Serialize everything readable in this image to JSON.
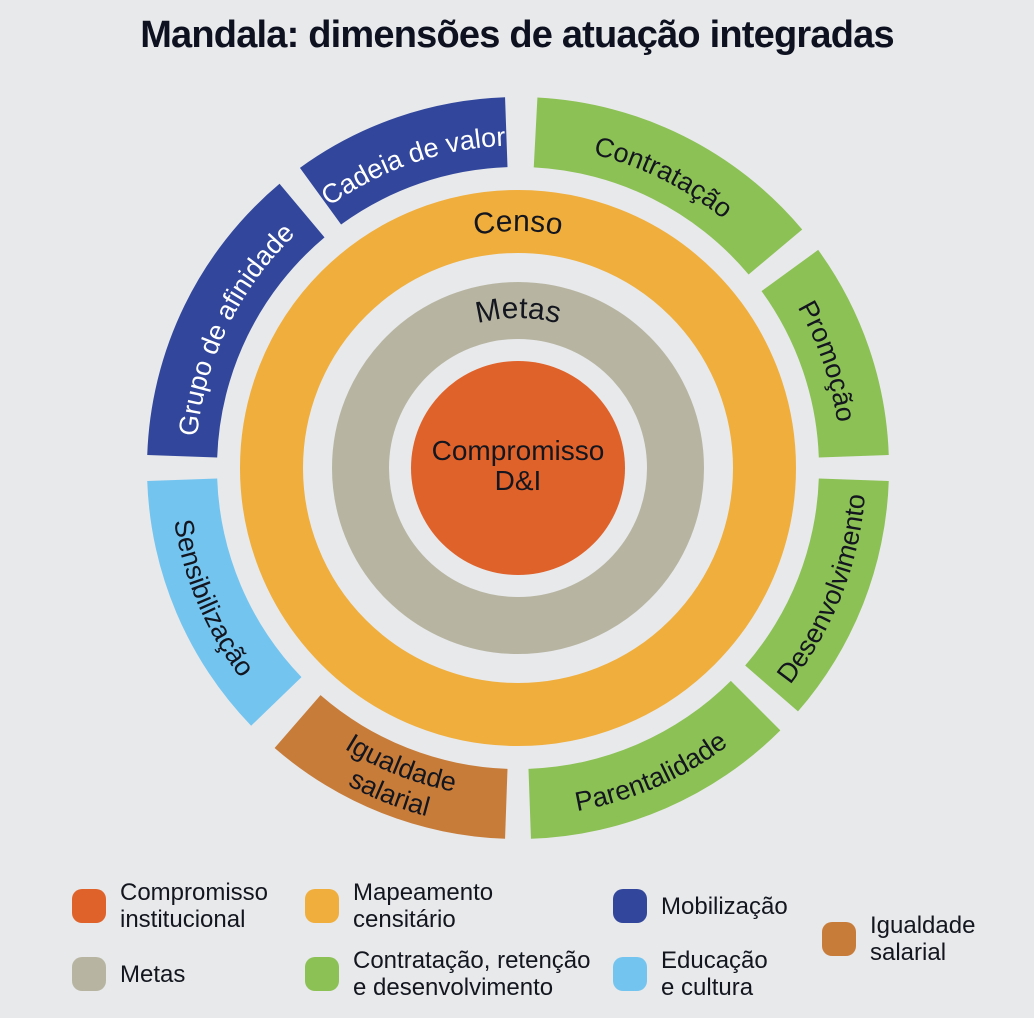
{
  "title": "Mandala: dimensões de atuação integradas",
  "colors": {
    "background": "#E8E9EB",
    "orange": "#E0622B",
    "olive_gray": "#B7B5A2",
    "amber": "#F0AE3D",
    "green": "#8CC155",
    "dark_blue": "#32479C",
    "light_blue": "#74C4F0",
    "brown": "#C87C3A",
    "text_dark": "#14161F",
    "text_light": "#FFFFFF"
  },
  "mandala": {
    "center": {
      "name": "compromisso-d-i",
      "lines": [
        "Compromisso",
        "D&I"
      ],
      "color": "orange"
    },
    "rings": [
      {
        "name": "censo",
        "label": "Censo",
        "color": "amber"
      },
      {
        "name": "metas",
        "label": "Metas",
        "color": "olive_gray"
      }
    ],
    "segments": [
      {
        "name": "contratacao",
        "label": "Contratação",
        "color": "green",
        "text": "dark",
        "start": 3,
        "end": 50,
        "dir": "cw"
      },
      {
        "name": "promocao",
        "label": "Promoção",
        "color": "green",
        "text": "dark",
        "start": 54,
        "end": 88,
        "dir": "cw"
      },
      {
        "name": "desenvolvimento",
        "label": "Desenvolvimento",
        "color": "green",
        "text": "dark",
        "start": 92,
        "end": 131,
        "dir": "ccw"
      },
      {
        "name": "parentalidade",
        "label": "Parentalidade",
        "color": "green",
        "text": "dark",
        "start": 135,
        "end": 178,
        "dir": "ccw"
      },
      {
        "name": "igualdade-salarial",
        "label": "Igualdade salarial",
        "lines": [
          "Igualdade",
          "salarial"
        ],
        "color": "brown",
        "text": "dark",
        "start": 182,
        "end": 221,
        "dir": "ccw"
      },
      {
        "name": "sensibilizacao",
        "label": "Sensibilização",
        "color": "light_blue",
        "text": "dark",
        "start": 226,
        "end": 268,
        "dir": "ccw"
      },
      {
        "name": "grupo-de-afinidade",
        "label": "Grupo de afinidade",
        "color": "dark_blue",
        "text": "light",
        "start": 272,
        "end": 320,
        "dir": "cw"
      },
      {
        "name": "cadeia-de-valor",
        "label": "Cadeia de valor",
        "color": "dark_blue",
        "text": "light",
        "start": 324,
        "end": 358,
        "dir": "cw"
      }
    ]
  },
  "legend": {
    "items": [
      {
        "name": "compromisso-institucional",
        "color": "orange",
        "lines": [
          "Compromisso",
          "institucional"
        ]
      },
      {
        "name": "metas",
        "color": "olive_gray",
        "lines": [
          "Metas"
        ]
      },
      {
        "name": "mapeamento-censitario",
        "color": "amber",
        "lines": [
          "Mapeamento",
          "censitário"
        ]
      },
      {
        "name": "contratacao-retencao",
        "color": "green",
        "lines": [
          "Contratação, retenção",
          "e desenvolvimento"
        ]
      },
      {
        "name": "mobilizacao",
        "color": "dark_blue",
        "lines": [
          "Mobilização"
        ]
      },
      {
        "name": "educacao-e-cultura",
        "color": "light_blue",
        "lines": [
          "Educação",
          "e cultura"
        ]
      },
      {
        "name": "igualdade-salarial",
        "color": "brown",
        "lines": [
          "Igualdade",
          "salarial"
        ]
      }
    ]
  }
}
